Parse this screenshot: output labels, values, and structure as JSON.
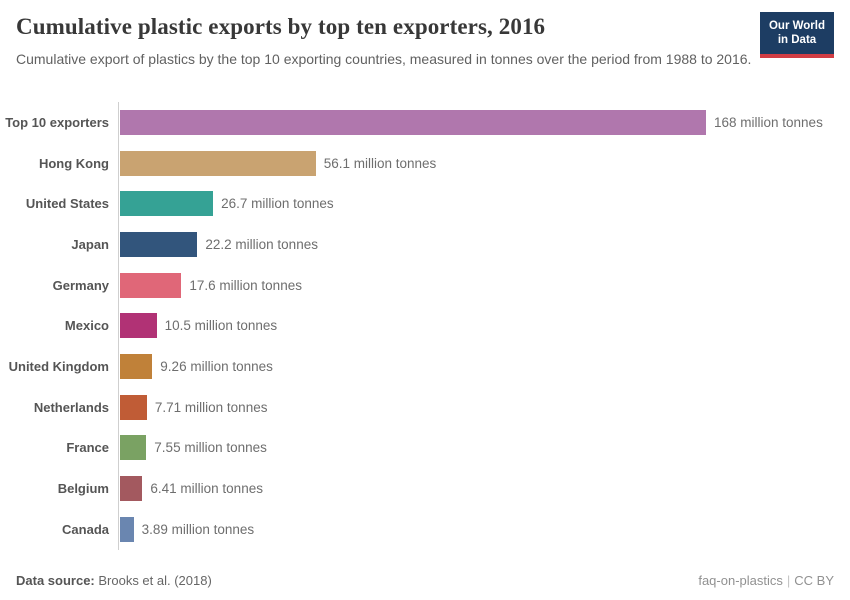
{
  "header": {
    "title": "Cumulative plastic exports by top ten exporters, 2016",
    "subtitle": "Cumulative export of plastics by the top 10 exporting countries, measured in tonnes over the period from 1988 to 2016.",
    "logo": {
      "line1": "Our World",
      "line2": "in Data"
    }
  },
  "chart_data": {
    "type": "bar",
    "orientation": "horizontal",
    "title": "Cumulative plastic exports by top ten exporters, 2016",
    "unit": "million tonnes",
    "xlim": [
      0,
      168
    ],
    "grid": false,
    "legend": "none",
    "categories": [
      "Top 10 exporters",
      "Hong Kong",
      "United States",
      "Japan",
      "Germany",
      "Mexico",
      "United Kingdom",
      "Netherlands",
      "France",
      "Belgium",
      "Canada"
    ],
    "values": [
      168,
      56.1,
      26.7,
      22.2,
      17.6,
      10.5,
      9.26,
      7.71,
      7.55,
      6.41,
      3.89
    ],
    "value_labels": [
      "168 million tonnes",
      "56.1 million tonnes",
      "26.7 million tonnes",
      "22.2 million tonnes",
      "17.6 million tonnes",
      "10.5 million tonnes",
      "9.26 million tonnes",
      "7.71 million tonnes",
      "7.55 million tonnes",
      "6.41 million tonnes",
      "3.89 million tonnes"
    ],
    "bar_colors": [
      "#b077ad",
      "#c9a371",
      "#35a295",
      "#32557c",
      "#e06778",
      "#b13275",
      "#c08139",
      "#c05c36",
      "#7aa263",
      "#a3595f",
      "#6a86b0"
    ]
  },
  "footer": {
    "datasource_label": "Data source:",
    "datasource_value": " Brooks et al. (2018)",
    "attribution": "faq-on-plastics",
    "license": "CC BY"
  },
  "colors": {
    "logo_bg": "#1d3d63",
    "logo_red": "#d13d44",
    "axis_line": "#cfcfcf",
    "title_text": "#383838",
    "subtitle_text": "#616161"
  }
}
